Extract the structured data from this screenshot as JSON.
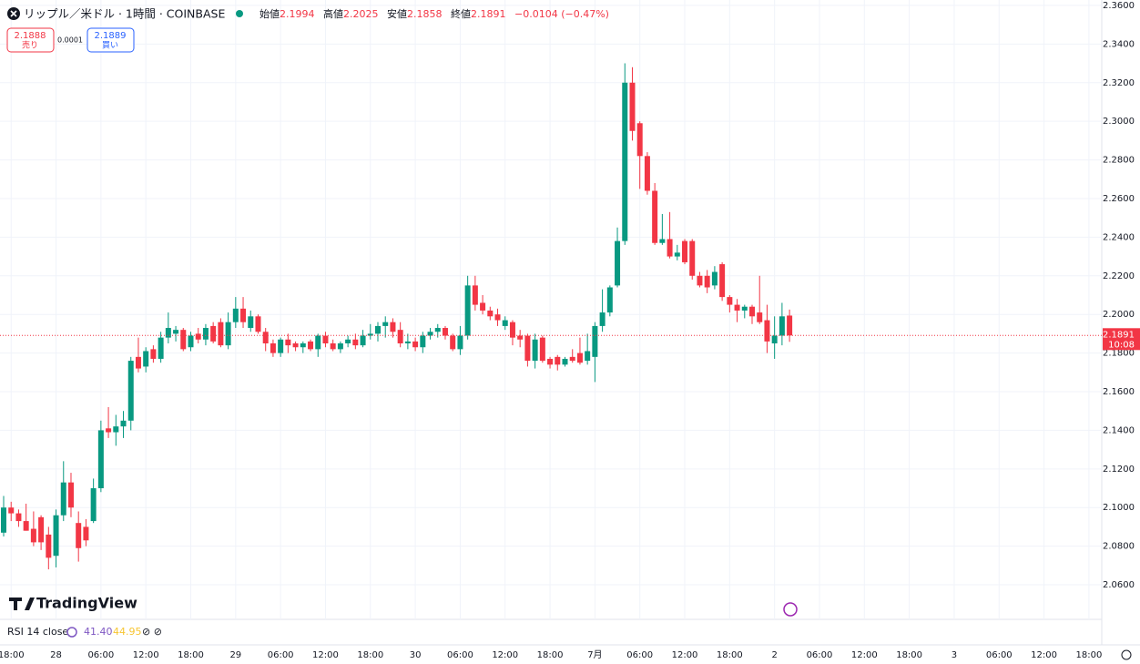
{
  "chart_data": {
    "type": "candlestick",
    "title": "リップル／米ドル · 1時間 · COINBASE",
    "ohlc_header": {
      "open_label": "始値",
      "open": "2.1994",
      "high_label": "高値",
      "high": "2.2025",
      "low_label": "安値",
      "low": "2.1858",
      "close_label": "終値",
      "close": "2.1891",
      "change": "−0.0104 (−0.47%)"
    },
    "sell": {
      "price": "2.1888",
      "label": "売り"
    },
    "spread": "0.0001",
    "buy": {
      "price": "2.1889",
      "label": "買い"
    },
    "last_price": {
      "value": 2.1891,
      "label": "2.1891",
      "countdown": "10:08"
    },
    "rsi": {
      "label": "RSI 14 close",
      "value": "41.40",
      "ma": "44.95"
    },
    "brand": "TradingView",
    "up_color": "#089981",
    "down_color": "#f23645",
    "ylim": [
      2.0421,
      2.3628
    ],
    "yticks": [
      {
        "value": 2.06,
        "label": "2.0600"
      },
      {
        "value": 2.08,
        "label": "2.0800"
      },
      {
        "value": 2.1,
        "label": "2.1000"
      },
      {
        "value": 2.12,
        "label": "2.1200"
      },
      {
        "value": 2.14,
        "label": "2.1400"
      },
      {
        "value": 2.16,
        "label": "2.1600"
      },
      {
        "value": 2.18,
        "label": "2.1800"
      },
      {
        "value": 2.2,
        "label": "2.2000"
      },
      {
        "value": 2.22,
        "label": "2.2200"
      },
      {
        "value": 2.24,
        "label": "2.2400"
      },
      {
        "value": 2.26,
        "label": "2.2600"
      },
      {
        "value": 2.28,
        "label": "2.2800"
      },
      {
        "value": 2.3,
        "label": "2.3000"
      },
      {
        "value": 2.32,
        "label": "2.3200"
      },
      {
        "value": 2.34,
        "label": "2.3400"
      },
      {
        "value": 2.36,
        "label": "2.3600"
      }
    ],
    "grid": true,
    "categories": [
      null,
      "18:00",
      null,
      null,
      null,
      null,
      null,
      "28",
      null,
      null,
      null,
      null,
      null,
      "06:00",
      null,
      null,
      null,
      null,
      null,
      "12:00",
      null,
      null,
      null,
      null,
      null,
      "18:00",
      null,
      null,
      null,
      null,
      null,
      "29",
      null,
      null,
      null,
      null,
      null,
      "06:00",
      null,
      null,
      null,
      null,
      null,
      "12:00",
      null,
      null,
      null,
      null,
      null,
      "18:00",
      null,
      null,
      null,
      null,
      null,
      "30",
      null,
      null,
      null,
      null,
      null,
      "06:00",
      null,
      null,
      null,
      null,
      null,
      "12:00",
      null,
      null,
      null,
      null,
      null,
      "18:00",
      null,
      null,
      null,
      null,
      null,
      "7月",
      null,
      null,
      null,
      null,
      null,
      "06:00",
      null,
      null,
      null,
      null,
      null,
      "12:00",
      null,
      null,
      null,
      null,
      null,
      "18:00",
      null,
      null,
      null,
      null,
      null,
      "2",
      null,
      null,
      null,
      null,
      null,
      "06:00",
      null,
      null,
      null,
      null,
      null,
      "12:00",
      null,
      null,
      null,
      null,
      null,
      "18:00",
      null,
      null,
      null,
      null,
      null,
      "3",
      null,
      null,
      null,
      null,
      null,
      "06:00",
      null,
      null,
      null,
      null,
      null,
      "12:00",
      null,
      null,
      null,
      null,
      null,
      "18:00"
    ],
    "open": [
      2.087,
      2.1,
      2.097,
      2.093,
      2.089,
      2.095,
      2.086,
      2.075,
      2.096,
      2.113,
      2.092,
      2.09,
      2.093,
      2.11,
      2.141,
      2.139,
      2.142,
      2.145,
      2.178,
      2.173,
      2.182,
      2.177,
      2.188,
      2.19,
      2.192,
      2.183,
      2.19,
      2.187,
      2.194,
      2.196,
      2.184,
      2.196,
      2.203,
      2.193,
      2.199,
      2.191,
      2.185,
      2.18,
      2.187,
      2.185,
      2.183,
      2.186,
      2.182,
      2.189,
      2.185,
      2.182,
      2.185,
      2.187,
      2.184,
      2.189,
      2.19,
      2.194,
      2.196,
      2.192,
      2.185,
      2.186,
      2.183,
      2.189,
      2.191,
      2.193,
      2.189,
      2.182,
      2.189,
      2.215,
      2.206,
      2.202,
      2.2,
      2.194,
      2.196,
      2.189,
      2.189,
      2.176,
      2.188,
      2.177,
      2.178,
      2.174,
      2.178,
      2.18,
      2.176,
      2.178,
      2.194,
      2.201,
      2.215,
      2.238,
      2.32,
      2.299,
      2.282,
      2.264,
      2.237,
      2.239,
      2.23,
      2.238,
      2.238,
      2.22,
      2.22,
      2.215,
      2.226,
      2.209,
      2.205,
      2.202,
      2.204,
      2.201,
      2.197,
      2.185,
      2.189,
      2.1994,
      null,
      null,
      null,
      null,
      null,
      null,
      null,
      null,
      null,
      null,
      null,
      null,
      null,
      null,
      null,
      null,
      null,
      null,
      null,
      null,
      null,
      null,
      null,
      null,
      null,
      null,
      null,
      null,
      null,
      null,
      null,
      null,
      null,
      null,
      null,
      null,
      null,
      null,
      null,
      null
    ],
    "high": [
      2.106,
      2.103,
      2.099,
      2.102,
      2.098,
      2.096,
      2.09,
      2.099,
      2.124,
      2.118,
      2.098,
      2.094,
      2.115,
      2.145,
      2.152,
      2.148,
      2.15,
      2.178,
      2.188,
      2.183,
      2.184,
      2.191,
      2.201,
      2.194,
      2.193,
      2.191,
      2.193,
      2.195,
      2.196,
      2.198,
      2.201,
      2.209,
      2.209,
      2.202,
      2.2,
      2.193,
      2.187,
      2.188,
      2.19,
      2.186,
      2.186,
      2.187,
      2.19,
      2.191,
      2.187,
      2.186,
      2.189,
      2.19,
      2.192,
      2.195,
      2.196,
      2.199,
      2.198,
      2.196,
      2.19,
      2.188,
      2.191,
      2.193,
      2.195,
      2.194,
      2.19,
      2.194,
      2.22,
      2.22,
      2.21,
      2.204,
      2.203,
      2.199,
      2.197,
      2.192,
      2.19,
      2.19,
      2.189,
      2.178,
      2.179,
      2.178,
      2.182,
      2.188,
      2.19,
      2.196,
      2.213,
      2.215,
      2.245,
      2.33,
      2.328,
      2.3,
      2.284,
      2.268,
      2.252,
      2.253,
      2.236,
      2.239,
      2.239,
      2.222,
      2.223,
      2.225,
      2.227,
      2.21,
      2.208,
      2.205,
      2.205,
      2.22,
      2.205,
      2.199,
      2.206,
      2.2025,
      null,
      null,
      null,
      null,
      null,
      null,
      null,
      null,
      null,
      null,
      null,
      null,
      null,
      null,
      null,
      null,
      null,
      null,
      null,
      null,
      null,
      null,
      null,
      null,
      null,
      null,
      null,
      null,
      null,
      null,
      null,
      null,
      null,
      null,
      null,
      null,
      null,
      null,
      null,
      null
    ],
    "low": [
      2.085,
      2.093,
      2.09,
      2.088,
      2.08,
      2.078,
      2.068,
      2.069,
      2.093,
      2.095,
      2.072,
      2.08,
      2.092,
      2.108,
      2.136,
      2.132,
      2.136,
      2.14,
      2.17,
      2.17,
      2.175,
      2.175,
      2.185,
      2.186,
      2.181,
      2.181,
      2.185,
      2.184,
      2.185,
      2.183,
      2.182,
      2.193,
      2.193,
      2.191,
      2.19,
      2.181,
      2.178,
      2.178,
      2.18,
      2.181,
      2.18,
      2.181,
      2.178,
      2.183,
      2.181,
      2.18,
      2.183,
      2.182,
      2.183,
      2.187,
      2.186,
      2.188,
      2.188,
      2.183,
      2.182,
      2.181,
      2.18,
      2.187,
      2.188,
      2.187,
      2.181,
      2.179,
      2.187,
      2.202,
      2.2,
      2.197,
      2.194,
      2.192,
      2.184,
      2.183,
      2.173,
      2.172,
      2.175,
      2.172,
      2.171,
      2.173,
      2.175,
      2.174,
      2.174,
      2.165,
      2.191,
      2.199,
      2.214,
      2.236,
      2.29,
      2.265,
      2.262,
      2.236,
      2.236,
      2.229,
      2.228,
      2.226,
      2.218,
      2.214,
      2.211,
      2.213,
      2.207,
      2.201,
      2.196,
      2.198,
      2.195,
      2.195,
      2.18,
      2.177,
      2.184,
      2.1858,
      null,
      null,
      null,
      null,
      null,
      null,
      null,
      null,
      null,
      null,
      null,
      null,
      null,
      null,
      null,
      null,
      null,
      null,
      null,
      null,
      null,
      null,
      null,
      null,
      null,
      null,
      null,
      null,
      null,
      null,
      null,
      null,
      null,
      null,
      null,
      null,
      null,
      null,
      null,
      null
    ],
    "close": [
      2.1,
      2.097,
      2.093,
      2.088,
      2.082,
      2.082,
      2.074,
      2.096,
      2.113,
      2.1,
      2.079,
      2.083,
      2.11,
      2.14,
      2.139,
      2.142,
      2.145,
      2.176,
      2.172,
      2.181,
      2.177,
      2.188,
      2.193,
      2.192,
      2.182,
      2.189,
      2.187,
      2.193,
      2.186,
      2.184,
      2.196,
      2.203,
      2.196,
      2.199,
      2.191,
      2.185,
      2.18,
      2.187,
      2.184,
      2.183,
      2.185,
      2.182,
      2.189,
      2.185,
      2.182,
      2.185,
      2.187,
      2.184,
      2.189,
      2.19,
      2.194,
      2.196,
      2.191,
      2.185,
      2.186,
      2.183,
      2.189,
      2.191,
      2.193,
      2.189,
      2.182,
      2.189,
      2.215,
      2.205,
      2.202,
      2.199,
      2.197,
      2.197,
      2.188,
      2.187,
      2.176,
      2.187,
      2.176,
      2.174,
      2.174,
      2.177,
      2.176,
      2.175,
      2.181,
      2.194,
      2.201,
      2.214,
      2.238,
      2.32,
      2.295,
      2.282,
      2.264,
      2.237,
      2.239,
      2.23,
      2.232,
      2.227,
      2.22,
      2.215,
      2.214,
      2.222,
      2.209,
      2.205,
      2.202,
      2.204,
      2.199,
      2.196,
      2.186,
      2.189,
      2.199,
      2.1891,
      null,
      null,
      null,
      null,
      null,
      null,
      null,
      null,
      null,
      null,
      null,
      null,
      null,
      null,
      null,
      null,
      null,
      null,
      null,
      null,
      null,
      null,
      null,
      null,
      null,
      null,
      null,
      null,
      null,
      null,
      null,
      null,
      null,
      null,
      null,
      null,
      null,
      null,
      null,
      null
    ]
  }
}
